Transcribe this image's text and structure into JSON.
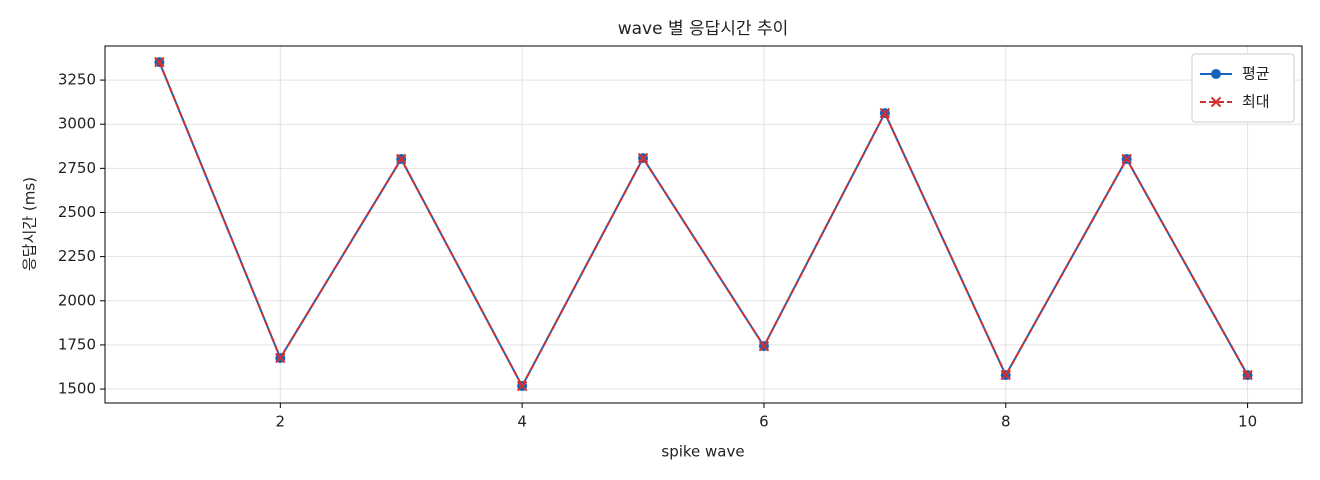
{
  "chart_data": {
    "type": "line",
    "title": "wave 별 응답시간 추이",
    "x_label": "spike wave",
    "y_label": "응답시간 (ms)",
    "x": [
      1,
      2,
      3,
      4,
      5,
      6,
      7,
      8,
      9,
      10
    ],
    "series": [
      {
        "name": "평균",
        "color": "#1565c0",
        "marker": "o",
        "linestyle": "solid",
        "values": [
          3352,
          1676,
          2803,
          1517,
          2808,
          1743,
          3063,
          1579,
          2803,
          1579
        ]
      },
      {
        "name": "최대",
        "color": "#d32f2f",
        "marker": "x",
        "linestyle": "dashed",
        "values": [
          3352,
          1676,
          2803,
          1517,
          2808,
          1743,
          3063,
          1579,
          2803,
          1579
        ]
      }
    ],
    "xlim": [
      0.55,
      10.45
    ],
    "xticks": [
      2,
      4,
      6,
      8,
      10
    ],
    "ylim": [
      1421,
      3443
    ],
    "yticks": [
      1500,
      1750,
      2000,
      2250,
      2500,
      2750,
      3000,
      3250
    ],
    "grid": true,
    "legend": "upper right"
  }
}
